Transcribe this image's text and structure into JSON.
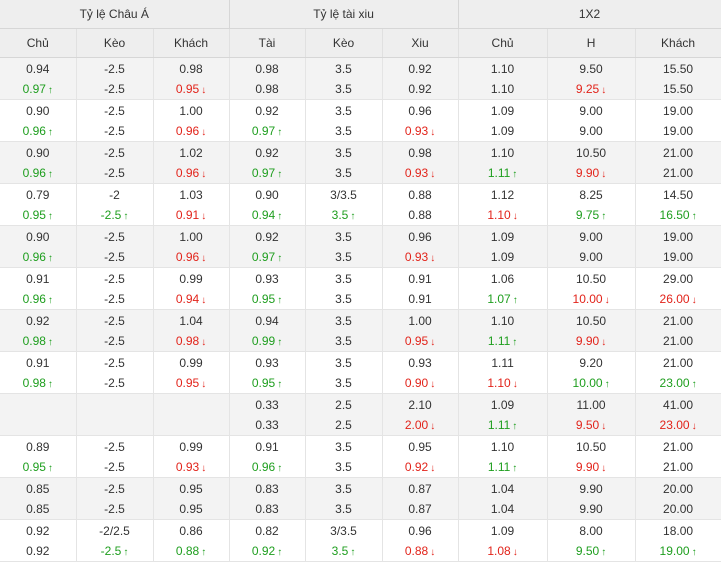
{
  "headers": {
    "groups": [
      "Tỷ lệ Châu Á",
      "Tỷ lệ tài xiu",
      "1X2"
    ],
    "columns": [
      "Chủ",
      "Kèo",
      "Khách",
      "Tài",
      "Kèo",
      "Xiu",
      "Chủ",
      "H",
      "Khách"
    ]
  },
  "rows": [
    {
      "shaded": true,
      "open": [
        "0.94",
        "-2.5",
        "0.98",
        "0.98",
        "3.5",
        "0.92",
        "1.10",
        "9.50",
        "15.50"
      ],
      "live": [
        {
          "v": "0.97",
          "t": "up"
        },
        {
          "v": "-2.5"
        },
        {
          "v": "0.95",
          "t": "down"
        },
        {
          "v": "0.98"
        },
        {
          "v": "3.5"
        },
        {
          "v": "0.92"
        },
        {
          "v": "1.10"
        },
        {
          "v": "9.25",
          "t": "down"
        },
        {
          "v": "15.50"
        }
      ]
    },
    {
      "shaded": false,
      "open": [
        "0.90",
        "-2.5",
        "1.00",
        "0.92",
        "3.5",
        "0.96",
        "1.09",
        "9.00",
        "19.00"
      ],
      "live": [
        {
          "v": "0.96",
          "t": "up"
        },
        {
          "v": "-2.5"
        },
        {
          "v": "0.96",
          "t": "down"
        },
        {
          "v": "0.97",
          "t": "up"
        },
        {
          "v": "3.5"
        },
        {
          "v": "0.93",
          "t": "down"
        },
        {
          "v": "1.09"
        },
        {
          "v": "9.00"
        },
        {
          "v": "19.00"
        }
      ]
    },
    {
      "shaded": true,
      "open": [
        "0.90",
        "-2.5",
        "1.02",
        "0.92",
        "3.5",
        "0.98",
        "1.10",
        "10.50",
        "21.00"
      ],
      "live": [
        {
          "v": "0.96",
          "t": "up"
        },
        {
          "v": "-2.5"
        },
        {
          "v": "0.96",
          "t": "down"
        },
        {
          "v": "0.97",
          "t": "up"
        },
        {
          "v": "3.5"
        },
        {
          "v": "0.93",
          "t": "down"
        },
        {
          "v": "1.11",
          "t": "up"
        },
        {
          "v": "9.90",
          "t": "down"
        },
        {
          "v": "21.00"
        }
      ]
    },
    {
      "shaded": false,
      "open": [
        "0.79",
        "-2",
        "1.03",
        "0.90",
        "3/3.5",
        "0.88",
        "1.12",
        "8.25",
        "14.50"
      ],
      "live": [
        {
          "v": "0.95",
          "t": "up"
        },
        {
          "v": "-2.5",
          "t": "up"
        },
        {
          "v": "0.91",
          "t": "down"
        },
        {
          "v": "0.94",
          "t": "up"
        },
        {
          "v": "3.5",
          "t": "up"
        },
        {
          "v": "0.88"
        },
        {
          "v": "1.10",
          "t": "down"
        },
        {
          "v": "9.75",
          "t": "up"
        },
        {
          "v": "16.50",
          "t": "up"
        }
      ]
    },
    {
      "shaded": true,
      "open": [
        "0.90",
        "-2.5",
        "1.00",
        "0.92",
        "3.5",
        "0.96",
        "1.09",
        "9.00",
        "19.00"
      ],
      "live": [
        {
          "v": "0.96",
          "t": "up"
        },
        {
          "v": "-2.5"
        },
        {
          "v": "0.96",
          "t": "down"
        },
        {
          "v": "0.97",
          "t": "up"
        },
        {
          "v": "3.5"
        },
        {
          "v": "0.93",
          "t": "down"
        },
        {
          "v": "1.09"
        },
        {
          "v": "9.00"
        },
        {
          "v": "19.00"
        }
      ]
    },
    {
      "shaded": false,
      "open": [
        "0.91",
        "-2.5",
        "0.99",
        "0.93",
        "3.5",
        "0.91",
        "1.06",
        "10.50",
        "29.00"
      ],
      "live": [
        {
          "v": "0.96",
          "t": "up"
        },
        {
          "v": "-2.5"
        },
        {
          "v": "0.94",
          "t": "down"
        },
        {
          "v": "0.95",
          "t": "up"
        },
        {
          "v": "3.5"
        },
        {
          "v": "0.91"
        },
        {
          "v": "1.07",
          "t": "up"
        },
        {
          "v": "10.00",
          "t": "down"
        },
        {
          "v": "26.00",
          "t": "down"
        }
      ]
    },
    {
      "shaded": true,
      "open": [
        "0.92",
        "-2.5",
        "1.04",
        "0.94",
        "3.5",
        "1.00",
        "1.10",
        "10.50",
        "21.00"
      ],
      "live": [
        {
          "v": "0.98",
          "t": "up"
        },
        {
          "v": "-2.5"
        },
        {
          "v": "0.98",
          "t": "down"
        },
        {
          "v": "0.99",
          "t": "up"
        },
        {
          "v": "3.5"
        },
        {
          "v": "0.95",
          "t": "down"
        },
        {
          "v": "1.11",
          "t": "up"
        },
        {
          "v": "9.90",
          "t": "down"
        },
        {
          "v": "21.00"
        }
      ]
    },
    {
      "shaded": false,
      "open": [
        "0.91",
        "-2.5",
        "0.99",
        "0.93",
        "3.5",
        "0.93",
        "1.11",
        "9.20",
        "21.00"
      ],
      "live": [
        {
          "v": "0.98",
          "t": "up"
        },
        {
          "v": "-2.5"
        },
        {
          "v": "0.95",
          "t": "down"
        },
        {
          "v": "0.95",
          "t": "up"
        },
        {
          "v": "3.5"
        },
        {
          "v": "0.90",
          "t": "down"
        },
        {
          "v": "1.10",
          "t": "down"
        },
        {
          "v": "10.00",
          "t": "up"
        },
        {
          "v": "23.00",
          "t": "up"
        }
      ]
    },
    {
      "shaded": true,
      "open": [
        "",
        "",
        "",
        "0.33",
        "2.5",
        "2.10",
        "1.09",
        "11.00",
        "41.00"
      ],
      "live": [
        {
          "v": ""
        },
        {
          "v": ""
        },
        {
          "v": ""
        },
        {
          "v": "0.33"
        },
        {
          "v": "2.5"
        },
        {
          "v": "2.00",
          "t": "down"
        },
        {
          "v": "1.11",
          "t": "up"
        },
        {
          "v": "9.50",
          "t": "down"
        },
        {
          "v": "23.00",
          "t": "down"
        }
      ]
    },
    {
      "shaded": false,
      "open": [
        "0.89",
        "-2.5",
        "0.99",
        "0.91",
        "3.5",
        "0.95",
        "1.10",
        "10.50",
        "21.00"
      ],
      "live": [
        {
          "v": "0.95",
          "t": "up"
        },
        {
          "v": "-2.5"
        },
        {
          "v": "0.93",
          "t": "down"
        },
        {
          "v": "0.96",
          "t": "up"
        },
        {
          "v": "3.5"
        },
        {
          "v": "0.92",
          "t": "down"
        },
        {
          "v": "1.11",
          "t": "up"
        },
        {
          "v": "9.90",
          "t": "down"
        },
        {
          "v": "21.00"
        }
      ]
    },
    {
      "shaded": true,
      "open": [
        "0.85",
        "-2.5",
        "0.95",
        "0.83",
        "3.5",
        "0.87",
        "1.04",
        "9.90",
        "20.00"
      ],
      "live": [
        {
          "v": "0.85"
        },
        {
          "v": "-2.5"
        },
        {
          "v": "0.95"
        },
        {
          "v": "0.83"
        },
        {
          "v": "3.5"
        },
        {
          "v": "0.87"
        },
        {
          "v": "1.04"
        },
        {
          "v": "9.90"
        },
        {
          "v": "20.00"
        }
      ]
    },
    {
      "shaded": false,
      "open": [
        "0.92",
        "-2/2.5",
        "0.86",
        "0.82",
        "3/3.5",
        "0.96",
        "1.09",
        "8.00",
        "18.00"
      ],
      "live": [
        {
          "v": "0.92"
        },
        {
          "v": "-2.5",
          "t": "up"
        },
        {
          "v": "0.88",
          "t": "up"
        },
        {
          "v": "0.92",
          "t": "up"
        },
        {
          "v": "3.5",
          "t": "up"
        },
        {
          "v": "0.88",
          "t": "down"
        },
        {
          "v": "1.08",
          "t": "down"
        },
        {
          "v": "9.50",
          "t": "up"
        },
        {
          "v": "19.00",
          "t": "up"
        }
      ]
    }
  ]
}
